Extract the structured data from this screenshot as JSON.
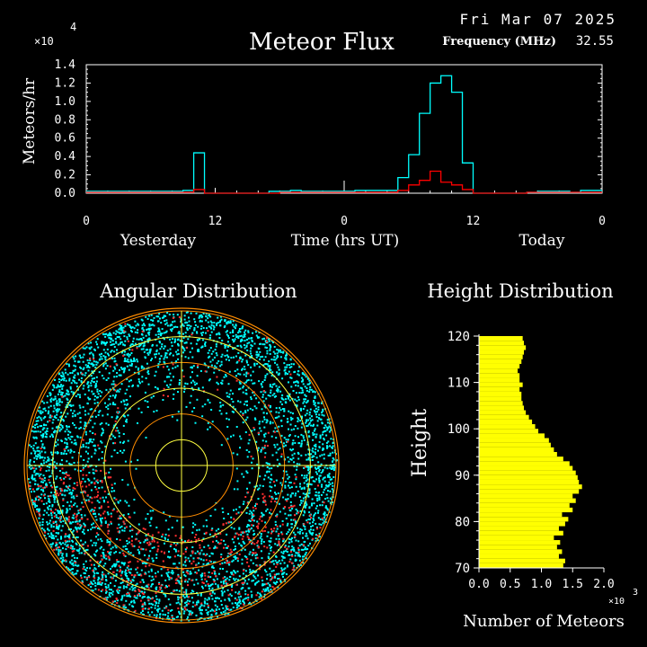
{
  "header": {
    "date": "Fri Mar 07 2025",
    "title": "Meteor Flux",
    "frequency_label": "Frequency (MHz)",
    "frequency_value": "32.55"
  },
  "colors": {
    "background": "#000000",
    "axes": "#ffffff",
    "flux_series": "#00ffff",
    "flux_series_2": "#ff0000",
    "angular_points": "#00ffff",
    "angular_points_2": "#ff3030",
    "angular_rings": "#ff8c00",
    "angular_grid": "#ffff40",
    "height_bars": "#ffff00"
  },
  "chart_data": [
    {
      "type": "line",
      "title": "Meteor Flux",
      "ylabel": "Meteors/hr",
      "y_multiplier": "×10",
      "y_multiplier_exp": "4",
      "xlabel": "Time (hrs UT)",
      "day_labels": [
        "Yesterday",
        "Today"
      ],
      "xtick_labels": [
        "0",
        "12",
        "0",
        "12",
        "0"
      ],
      "ytick_labels": [
        "0.0",
        "0.2",
        "0.4",
        "0.6",
        "0.8",
        "1.0",
        "1.2",
        "1.4"
      ],
      "ylim": [
        0,
        1.4
      ],
      "x_hours": [
        -24,
        -23,
        -22,
        -21,
        -20,
        -19,
        -18,
        -17,
        -16,
        -15,
        -14,
        -13,
        -12,
        -11,
        -10,
        -9,
        -8,
        -7,
        -6,
        -5,
        -4,
        -3,
        -2,
        -1,
        0,
        1,
        2,
        3,
        4,
        5,
        6,
        7,
        8,
        9,
        10,
        11,
        12,
        13,
        14,
        15,
        16,
        17,
        18,
        19,
        20,
        21,
        22,
        23
      ],
      "series": [
        {
          "values": [
            0.02,
            0.02,
            0.02,
            0.02,
            0.02,
            0.02,
            0.02,
            0.02,
            0.02,
            0.03,
            0.44,
            0.0,
            0.0,
            0.0,
            0.0,
            0.0,
            0.0,
            0.02,
            0.02,
            0.03,
            0.02,
            0.02,
            0.02,
            0.02,
            0.02,
            0.03,
            0.03,
            0.03,
            0.03,
            0.17,
            0.42,
            0.87,
            1.2,
            1.28,
            1.1,
            0.33,
            0.0,
            0.0,
            0.0,
            0.0,
            0.0,
            0.01,
            0.02,
            0.02,
            0.02,
            0.01,
            0.03,
            0.03
          ]
        },
        {
          "values": [
            0.01,
            0.01,
            0.01,
            0.01,
            0.01,
            0.01,
            0.01,
            0.01,
            0.01,
            0.01,
            0.04,
            0.0,
            0.0,
            0.0,
            0.0,
            0.0,
            0.0,
            0.0,
            0.01,
            0.01,
            0.01,
            0.01,
            0.01,
            0.01,
            0.01,
            0.01,
            0.01,
            0.01,
            0.01,
            0.03,
            0.09,
            0.14,
            0.24,
            0.12,
            0.09,
            0.04,
            0.0,
            0.0,
            0.0,
            0.0,
            0.0,
            0.01,
            0.01,
            0.01,
            0.01,
            0.01,
            0.01,
            0.01
          ]
        }
      ]
    },
    {
      "type": "scatter",
      "title": "Angular Distribution",
      "rings": 6,
      "point_estimate": "several thousand detections spread over the sky disc; dense near the rim, sparse in the centre, red detections concentrated lower-right"
    },
    {
      "type": "bar",
      "orientation": "horizontal",
      "title": "Height Distribution",
      "ylabel": "Height",
      "xlabel": "Number of Meteors",
      "x_multiplier": "×10",
      "x_multiplier_exp": "3",
      "ylim": [
        70,
        120
      ],
      "xlim": [
        0,
        2.0
      ],
      "ytick_labels": [
        "70",
        "80",
        "90",
        "100",
        "110",
        "120"
      ],
      "xtick_labels": [
        "0.0",
        "0.5",
        "1.0",
        "1.5",
        "2.0"
      ],
      "heights": [
        70,
        71,
        72,
        73,
        74,
        75,
        76,
        77,
        78,
        79,
        80,
        81,
        82,
        83,
        84,
        85,
        86,
        87,
        88,
        89,
        90,
        91,
        92,
        93,
        94,
        95,
        96,
        97,
        98,
        99,
        100,
        101,
        102,
        103,
        104,
        105,
        106,
        107,
        108,
        109,
        110,
        111,
        112,
        113,
        114,
        115,
        116,
        117,
        118,
        119
      ],
      "values": [
        1.35,
        1.38,
        1.28,
        1.33,
        1.25,
        1.3,
        1.2,
        1.35,
        1.28,
        1.38,
        1.43,
        1.33,
        1.5,
        1.45,
        1.55,
        1.5,
        1.6,
        1.65,
        1.6,
        1.58,
        1.55,
        1.5,
        1.45,
        1.35,
        1.25,
        1.2,
        1.15,
        1.12,
        1.05,
        0.95,
        0.9,
        0.85,
        0.8,
        0.75,
        0.72,
        0.7,
        0.68,
        0.68,
        0.65,
        0.7,
        0.65,
        0.65,
        0.62,
        0.65,
        0.68,
        0.7,
        0.72,
        0.75,
        0.72,
        0.7
      ]
    }
  ]
}
